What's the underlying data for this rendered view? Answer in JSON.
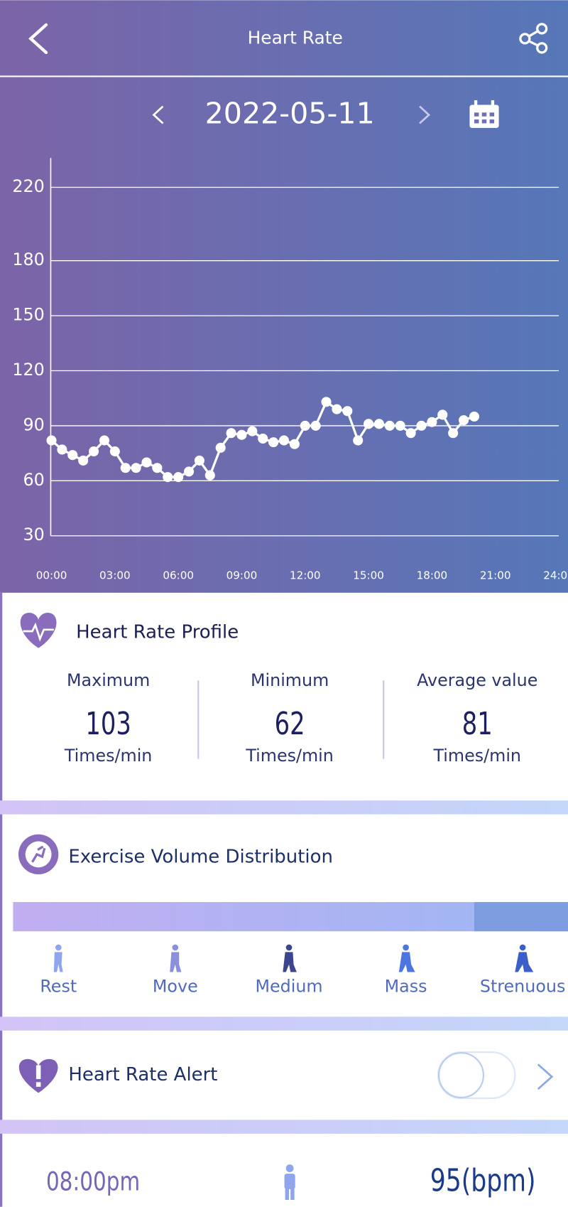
{
  "header": {
    "title": "Heart Rate"
  },
  "date": "2022-05-11",
  "chart_data": {
    "type": "line",
    "color": "#ffffff",
    "grid": true,
    "x": [
      0,
      0.5,
      1,
      1.5,
      2,
      2.5,
      3,
      3.5,
      4,
      4.5,
      5,
      5.5,
      6,
      6.5,
      7,
      7.5,
      8,
      8.5,
      9,
      9.5,
      10,
      10.5,
      11,
      11.5,
      12,
      12.5,
      13,
      13.5,
      14,
      14.5,
      15,
      15.5,
      16,
      16.5,
      17,
      17.5,
      18,
      18.5,
      19,
      19.5,
      20
    ],
    "values": [
      82,
      77,
      74,
      71,
      76,
      82,
      76,
      67,
      67,
      70,
      67,
      62,
      62,
      65,
      71,
      63,
      78,
      86,
      85,
      87,
      83,
      81,
      82,
      80,
      90,
      90,
      103,
      99,
      98,
      82,
      91,
      91,
      90,
      90,
      86,
      90,
      92,
      96,
      86,
      93,
      95
    ],
    "xlim": [
      0,
      24
    ],
    "xticks": [
      {
        "value": 0,
        "label": "00:00"
      },
      {
        "value": 3,
        "label": "03:00"
      },
      {
        "value": 6,
        "label": "06:00"
      },
      {
        "value": 9,
        "label": "09:00"
      },
      {
        "value": 12,
        "label": "12:00"
      },
      {
        "value": 15,
        "label": "15:00"
      },
      {
        "value": 18,
        "label": "18:00"
      },
      {
        "value": 21,
        "label": "21:00"
      },
      {
        "value": 24,
        "label": "24:00"
      }
    ],
    "ylim": [
      30,
      236
    ],
    "yticks": [
      30,
      60,
      90,
      120,
      150,
      180,
      220
    ]
  },
  "profile": {
    "title": "Heart Rate Profile",
    "stats": [
      {
        "label": "Maximum",
        "value": "103",
        "unit": "Times/min"
      },
      {
        "label": "Minimum",
        "value": "62",
        "unit": "Times/min"
      },
      {
        "label": "Average value",
        "value": "81",
        "unit": "Times/min"
      }
    ]
  },
  "exercise": {
    "title": "Exercise Volume Distribution",
    "levels": [
      "Rest",
      "Move",
      "Medium",
      "Mass",
      "Strenuous"
    ]
  },
  "alert": {
    "title": "Heart Rate Alert"
  },
  "record": {
    "time": "08:00pm",
    "value": "95(bpm)"
  }
}
